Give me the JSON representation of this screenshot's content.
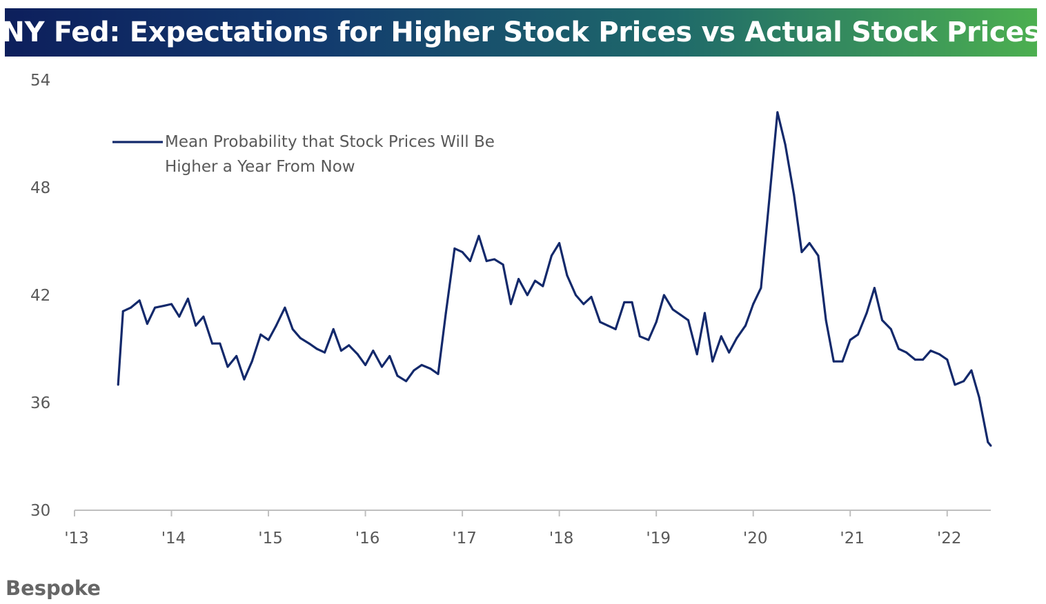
{
  "title": "NY Fed: Expectations for Higher Stock Prices vs Actual Stock Prices",
  "footer": "Bespoke",
  "colors": {
    "line": "#13296b",
    "axis": "#bfbfbf",
    "text": "#595959"
  },
  "chart_data": {
    "type": "line",
    "title": "NY Fed: Expectations for Higher Stock Prices vs Actual Stock Prices",
    "xlabel": "",
    "ylabel": "",
    "ylim": [
      30,
      54
    ],
    "yticks": [
      "54",
      "48",
      "42",
      "36",
      "30"
    ],
    "ytick_values": [
      54,
      48,
      42,
      36,
      30
    ],
    "xlim": [
      2013.0,
      2022.45
    ],
    "xticks": [
      "'13",
      "'14",
      "'15",
      "'16",
      "'17",
      "'18",
      "'19",
      "'20",
      "'21",
      "'22"
    ],
    "xtick_values": [
      2013,
      2014,
      2015,
      2016,
      2017,
      2018,
      2019,
      2020,
      2021,
      2022
    ],
    "grid": false,
    "legend_position": "top-left",
    "series": [
      {
        "name": "Mean Probability that Stock Prices Will Be Higher a Year From Now",
        "legend_lines": [
          "Mean Probability that Stock Prices Will Be",
          "Higher a Year From Now"
        ],
        "x": [
          2013.45,
          2013.5,
          2013.58,
          2013.67,
          2013.75,
          2013.83,
          2013.92,
          2014.0,
          2014.08,
          2014.17,
          2014.25,
          2014.33,
          2014.42,
          2014.5,
          2014.58,
          2014.67,
          2014.75,
          2014.83,
          2014.92,
          2015.0,
          2015.08,
          2015.17,
          2015.25,
          2015.33,
          2015.42,
          2015.5,
          2015.58,
          2015.67,
          2015.75,
          2015.83,
          2015.92,
          2016.0,
          2016.08,
          2016.17,
          2016.25,
          2016.33,
          2016.42,
          2016.5,
          2016.58,
          2016.67,
          2016.75,
          2016.83,
          2016.92,
          2017.0,
          2017.08,
          2017.17,
          2017.25,
          2017.33,
          2017.42,
          2017.5,
          2017.58,
          2017.67,
          2017.75,
          2017.83,
          2017.92,
          2018.0,
          2018.08,
          2018.17,
          2018.25,
          2018.33,
          2018.42,
          2018.5,
          2018.58,
          2018.67,
          2018.75,
          2018.83,
          2018.92,
          2019.0,
          2019.08,
          2019.17,
          2019.25,
          2019.33,
          2019.42,
          2019.5,
          2019.58,
          2019.67,
          2019.75,
          2019.83,
          2019.92,
          2020.0,
          2020.08,
          2020.17,
          2020.25,
          2020.33,
          2020.42,
          2020.5,
          2020.58,
          2020.67,
          2020.75,
          2020.83,
          2020.92,
          2021.0,
          2021.08,
          2021.17,
          2021.25,
          2021.33,
          2021.42,
          2021.5,
          2021.58,
          2021.67,
          2021.75,
          2021.83,
          2021.92,
          2022.0,
          2022.08,
          2022.17,
          2022.25,
          2022.33,
          2022.42,
          2022.45
        ],
        "y": [
          37.0,
          41.1,
          41.3,
          41.7,
          40.4,
          41.3,
          41.4,
          41.5,
          40.8,
          41.8,
          40.3,
          40.8,
          39.3,
          39.3,
          38.0,
          38.6,
          37.3,
          38.3,
          39.8,
          39.5,
          40.3,
          41.3,
          40.1,
          39.6,
          39.3,
          39.0,
          38.8,
          40.1,
          38.9,
          39.2,
          38.7,
          38.1,
          38.9,
          38.0,
          38.6,
          37.5,
          37.2,
          37.8,
          38.1,
          37.9,
          37.6,
          41.0,
          44.6,
          44.4,
          43.9,
          45.3,
          43.9,
          44.0,
          43.7,
          41.5,
          42.9,
          42.0,
          42.8,
          42.5,
          44.2,
          44.9,
          43.1,
          42.0,
          41.5,
          41.9,
          40.5,
          40.3,
          40.1,
          41.6,
          41.6,
          39.7,
          39.5,
          40.5,
          42.0,
          41.2,
          40.9,
          40.6,
          38.7,
          41.0,
          38.3,
          39.7,
          38.8,
          39.6,
          40.3,
          41.5,
          42.4,
          47.6,
          52.2,
          50.4,
          47.6,
          44.4,
          44.9,
          44.2,
          40.6,
          38.3,
          38.3,
          39.5,
          39.8,
          41.0,
          42.4,
          40.6,
          40.1,
          39.0,
          38.8,
          38.4,
          38.4,
          38.9,
          38.7,
          38.4,
          37.0,
          37.2,
          37.8,
          36.3,
          33.8,
          33.6
        ]
      }
    ]
  }
}
